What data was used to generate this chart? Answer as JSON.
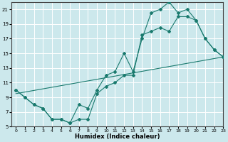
{
  "xlabel": "Humidex (Indice chaleur)",
  "bg_color": "#cce8ec",
  "grid_color": "#ffffff",
  "line_color": "#1a7a6e",
  "line1_x": [
    0,
    1,
    2,
    3,
    4,
    5,
    6,
    7,
    8,
    9,
    10,
    11,
    12,
    13,
    14,
    15,
    16,
    17,
    18,
    19,
    20,
    21,
    22,
    23
  ],
  "line1_y": [
    10,
    9,
    8,
    7.5,
    6,
    6,
    5.5,
    8,
    7.5,
    10,
    12,
    12.5,
    15,
    12.5,
    17,
    20.5,
    21,
    22,
    20.5,
    21,
    19.5,
    17,
    15.5,
    14.5
  ],
  "line2_x": [
    0,
    1,
    2,
    3,
    4,
    5,
    6,
    7,
    8,
    9,
    10,
    11,
    12,
    13,
    14,
    15,
    16,
    17,
    18,
    19,
    20,
    21,
    22,
    23
  ],
  "line2_y": [
    10,
    9,
    8,
    7.5,
    6,
    6,
    5.5,
    6,
    6,
    9.5,
    10.5,
    11,
    12,
    12,
    17.5,
    18,
    18.5,
    18,
    20,
    20,
    19.5,
    17,
    15.5,
    14.5
  ],
  "line3_x": [
    0,
    23
  ],
  "line3_y": [
    9.5,
    14.5
  ],
  "xlim": [
    -0.5,
    23
  ],
  "ylim": [
    5,
    22
  ],
  "xticks": [
    0,
    1,
    2,
    3,
    4,
    5,
    6,
    7,
    8,
    9,
    10,
    11,
    12,
    13,
    14,
    15,
    16,
    17,
    18,
    19,
    20,
    21,
    22,
    23
  ],
  "yticks": [
    5,
    7,
    9,
    11,
    13,
    15,
    17,
    19,
    21
  ]
}
